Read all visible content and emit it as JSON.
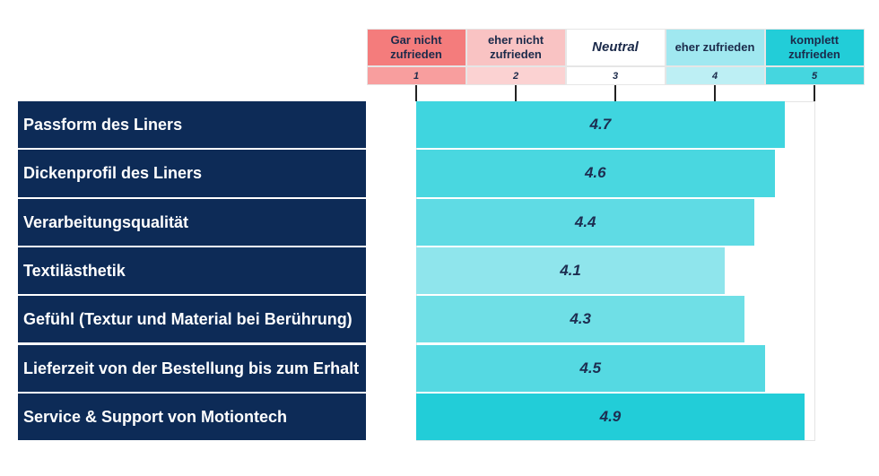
{
  "chart_data": {
    "type": "bar",
    "orientation": "horizontal",
    "scale_labels": [
      "Gar nicht zufrieden",
      "eher nicht zufrieden",
      "Neutral",
      "eher zufrieden",
      "komplett zufrieden"
    ],
    "scale_label_colors": [
      "#f47c7c",
      "#f9c3c3",
      "#ffffff",
      "#a0e8f0",
      "#22cdd8"
    ],
    "tick_colors": [
      "#f89e9e",
      "#fbd2d2",
      "#ffffff",
      "#bdeff4",
      "#45d6df"
    ],
    "categories": [
      "Passform des Liners",
      "Dickenprofil des Liners",
      "Verarbeitungsqualität",
      "Textilästhetik",
      "Gefühl (Textur und Material bei Berührung)",
      "Lieferzeit von der Bestellung bis zum Erhalt",
      "Service & Support von Motiontech"
    ],
    "values": [
      4.7,
      4.6,
      4.4,
      4.1,
      4.3,
      4.5,
      4.9
    ],
    "colors": [
      "#3fd5df",
      "#49d7e0",
      "#5fdbe4",
      "#8fe5ec",
      "#6fdfe6",
      "#55d9e2",
      "#22cdd8"
    ],
    "xlim": [
      1,
      5
    ],
    "xticks": [
      1,
      2,
      3,
      4,
      5
    ]
  }
}
